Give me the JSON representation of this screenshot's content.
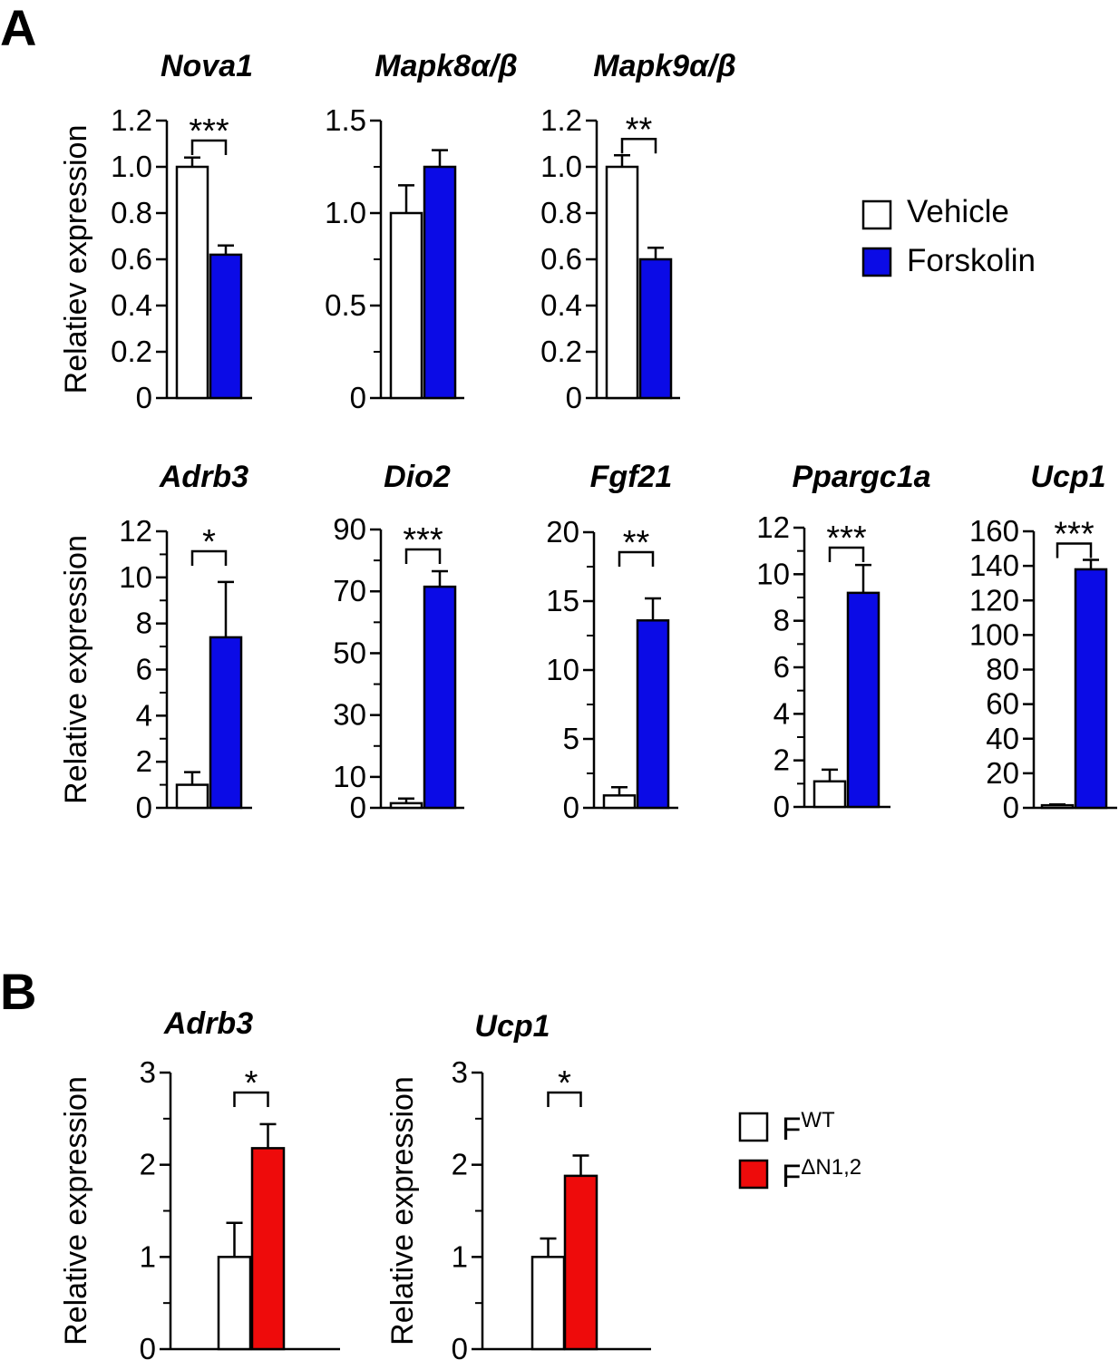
{
  "panel_labels": {
    "A": "A",
    "B": "B"
  },
  "colors": {
    "vehicle": "#ffffff",
    "forskolin": "#0b0be6",
    "fwt": "#ffffff",
    "fdn": "#ee0b0b",
    "stroke": "#000000"
  },
  "legend_a": {
    "vehicle": "Vehicle",
    "forskolin": "Forskolin"
  },
  "legend_b": {
    "fwt_base": "F",
    "fwt_sup": "WT",
    "fdn_base": "F",
    "fdn_sup": "ΔN1,2"
  },
  "chart_data": [
    {
      "type": "bar",
      "title": "Nova1",
      "ylabel": "Relatiev expression",
      "categories": [
        "Vehicle",
        "Forskolin"
      ],
      "values": [
        1.0,
        0.62
      ],
      "errors": [
        0.04,
        0.04
      ],
      "ylim": [
        0,
        1.2
      ],
      "ticks": [
        0,
        0.2,
        0.4,
        0.6,
        0.8,
        1.0,
        1.2
      ],
      "tick_labels": [
        "0",
        "0.2",
        "0.4",
        "0.6",
        "0.8",
        "1.0",
        "1.2"
      ],
      "minor_ticks": [],
      "significance": "***"
    },
    {
      "type": "bar",
      "title": "Mapk8α/β",
      "ylabel": "",
      "categories": [
        "Vehicle",
        "Forskolin"
      ],
      "values": [
        1.0,
        1.25
      ],
      "errors": [
        0.15,
        0.09
      ],
      "ylim": [
        0,
        1.5
      ],
      "ticks": [
        0,
        0.5,
        1.0,
        1.5
      ],
      "tick_labels": [
        "0",
        "0.5",
        "1.0",
        "1.5"
      ],
      "minor_ticks": [
        0.25,
        0.75,
        1.25
      ],
      "significance": ""
    },
    {
      "type": "bar",
      "title": "Mapk9α/β",
      "ylabel": "",
      "categories": [
        "Vehicle",
        "Forskolin"
      ],
      "values": [
        1.0,
        0.6
      ],
      "errors": [
        0.05,
        0.05
      ],
      "ylim": [
        0,
        1.2
      ],
      "ticks": [
        0,
        0.2,
        0.4,
        0.6,
        0.8,
        1.0,
        1.2
      ],
      "tick_labels": [
        "0",
        "0.2",
        "0.4",
        "0.6",
        "0.8",
        "1.0",
        "1.2"
      ],
      "minor_ticks": [],
      "significance": "**"
    },
    {
      "type": "bar",
      "title": "Adrb3",
      "ylabel": "Relative expression",
      "categories": [
        "Vehicle",
        "Forskolin"
      ],
      "values": [
        1.0,
        7.4
      ],
      "errors": [
        0.55,
        2.4
      ],
      "ylim": [
        0,
        12
      ],
      "ticks": [
        0,
        2,
        4,
        6,
        8,
        10,
        12
      ],
      "tick_labels": [
        "0",
        "2",
        "4",
        "6",
        "8",
        "10",
        "12"
      ],
      "minor_ticks": [
        1,
        3,
        5,
        7,
        9,
        11
      ],
      "significance": "*"
    },
    {
      "type": "bar",
      "title": "Dio2",
      "ylabel": "",
      "categories": [
        "Vehicle",
        "Forskolin"
      ],
      "values": [
        1.5,
        71.5
      ],
      "errors": [
        1.5,
        5.0
      ],
      "ylim": [
        0,
        90
      ],
      "ticks": [
        0,
        10,
        30,
        50,
        70,
        90
      ],
      "tick_labels": [
        "0",
        "10",
        "30",
        "50",
        "70",
        "90"
      ],
      "minor_ticks": [
        20,
        40,
        60,
        80
      ],
      "significance": "***"
    },
    {
      "type": "bar",
      "title": "Fgf21",
      "ylabel": "",
      "categories": [
        "Vehicle",
        "Forskolin"
      ],
      "values": [
        0.9,
        13.6
      ],
      "errors": [
        0.6,
        1.6
      ],
      "ylim": [
        0,
        20
      ],
      "ticks": [
        0,
        5,
        10,
        15,
        20
      ],
      "tick_labels": [
        "0",
        "5",
        "10",
        "15",
        "20"
      ],
      "minor_ticks": [
        2.5,
        7.5,
        12.5,
        17.5
      ],
      "significance": "**"
    },
    {
      "type": "bar",
      "title": "Ppargc1a",
      "ylabel": "",
      "categories": [
        "Vehicle",
        "Forskolin"
      ],
      "values": [
        1.1,
        9.2
      ],
      "errors": [
        0.5,
        1.2
      ],
      "ylim": [
        0,
        12
      ],
      "ticks": [
        0,
        2,
        4,
        6,
        8,
        10,
        12
      ],
      "tick_labels": [
        "0",
        "2",
        "4",
        "6",
        "8",
        "10",
        "12"
      ],
      "minor_ticks": [
        1,
        3,
        5,
        7,
        9,
        11
      ],
      "significance": "***"
    },
    {
      "type": "bar",
      "title": "Ucp1",
      "ylabel": "",
      "categories": [
        "Vehicle",
        "Forskolin"
      ],
      "values": [
        1.5,
        138
      ],
      "errors": [
        0.5,
        5.5
      ],
      "ylim": [
        0,
        160
      ],
      "ticks": [
        0,
        20,
        40,
        60,
        80,
        100,
        120,
        140,
        160
      ],
      "tick_labels": [
        "0",
        "20",
        "40",
        "60",
        "80",
        "100",
        "120",
        "140",
        "160"
      ],
      "minor_ticks": [],
      "significance": "***"
    },
    {
      "type": "bar",
      "title": "Adrb3",
      "ylabel": "Relative expression",
      "categories": [
        "FWT",
        "FΔN1,2"
      ],
      "values": [
        1.0,
        2.18
      ],
      "errors": [
        0.37,
        0.26
      ],
      "ylim": [
        0,
        3
      ],
      "ticks": [
        0,
        1,
        2,
        3
      ],
      "tick_labels": [
        "0",
        "1",
        "2",
        "3"
      ],
      "minor_ticks": [
        0.5,
        1.5,
        2.5
      ],
      "significance": "*"
    },
    {
      "type": "bar",
      "title": "Ucp1",
      "ylabel": "Relative expression",
      "categories": [
        "FWT",
        "FΔN1,2"
      ],
      "values": [
        1.0,
        1.88
      ],
      "errors": [
        0.2,
        0.22
      ],
      "ylim": [
        0,
        3
      ],
      "ticks": [
        0,
        1,
        2,
        3
      ],
      "tick_labels": [
        "0",
        "1",
        "2",
        "3"
      ],
      "minor_ticks": [
        0.5,
        1.5,
        2.5
      ],
      "significance": "*"
    }
  ]
}
